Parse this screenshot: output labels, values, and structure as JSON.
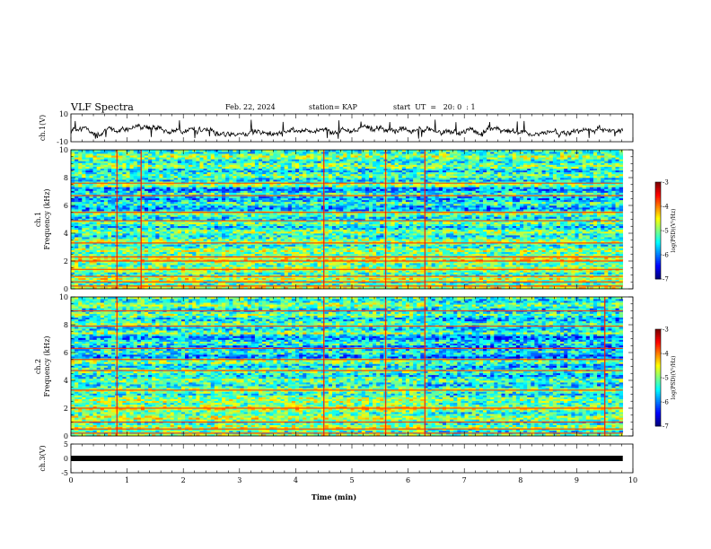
{
  "header": {
    "title": "VLF Spectra",
    "date": "Feb. 22, 2024",
    "station": "station= KAP",
    "start": "start  UT  =   20: 0  : 1"
  },
  "chart_data": [
    {
      "type": "line",
      "ylabel": "ch.1(V)",
      "ylim": [
        -10,
        10
      ],
      "yticks": [
        "10",
        "-10"
      ],
      "xlim": [
        0,
        10
      ],
      "description_series": "ch.1 waveform amplitude, fluctuating roughly between -7 and 3 V over the full record (ends near 9.8 min)"
    },
    {
      "type": "heatmap",
      "ylabel": "ch.1",
      "ylabel2": "Frequency (kHz)",
      "ylim": [
        0,
        10
      ],
      "yticks": [
        "0",
        "2",
        "4",
        "6",
        "8",
        "10"
      ],
      "xlim": [
        0,
        10
      ],
      "colorbar": {
        "label": "log(PSD)(V²/Hz)",
        "range": [
          -7,
          -3
        ],
        "ticks": [
          "-3",
          "-4",
          "-5",
          "-6",
          "-7"
        ]
      },
      "prominent_lines_kHz": [
        0.2,
        0.5,
        0.9,
        1.4,
        2.0,
        2.3,
        3.3,
        4.9,
        5.5,
        6.7,
        7.6
      ],
      "impulses_min": [
        0.82,
        1.25,
        4.5,
        5.6,
        6.3
      ]
    },
    {
      "type": "heatmap",
      "ylabel": "ch.2",
      "ylabel2": "Frequency (kHz)",
      "ylim": [
        0,
        10
      ],
      "yticks": [
        "0",
        "2",
        "4",
        "6",
        "8",
        "10"
      ],
      "xlim": [
        0,
        10
      ],
      "colorbar": {
        "label": "log(PSD)(V²/Hz)",
        "range": [
          -7,
          -3
        ],
        "ticks": [
          "-3",
          "-4",
          "-5",
          "-6",
          "-7"
        ]
      },
      "prominent_lines_kHz": [
        0.2,
        0.5,
        1.0,
        2.0,
        3.3,
        4.7,
        5.5,
        6.3,
        7.9,
        9.0
      ],
      "impulses_min": [
        0.82,
        4.5,
        5.6,
        6.3,
        9.5
      ]
    },
    {
      "type": "line",
      "ylabel": "ch.3(V)",
      "ylim": [
        -5,
        5
      ],
      "yticks": [
        "5",
        "0",
        "-5"
      ],
      "xlim": [
        0,
        10
      ],
      "xlabel": "Time  (min)",
      "xticks": [
        "0",
        "1",
        "2",
        "3",
        "4",
        "5",
        "6",
        "7",
        "8",
        "9",
        "10"
      ],
      "level_V": 0
    }
  ]
}
